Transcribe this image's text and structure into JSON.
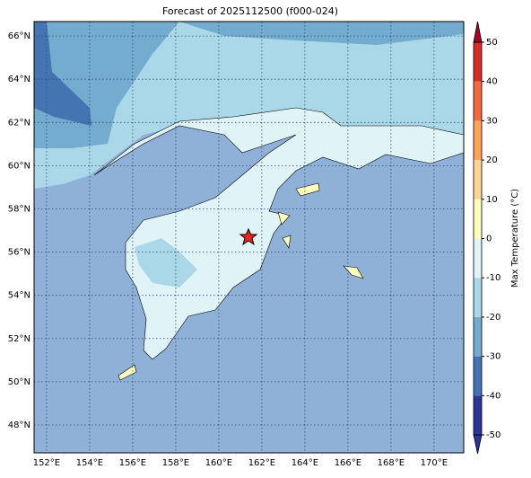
{
  "chart_data": {
    "type": "map",
    "title": "Forecast of 2025112500 (f000-024)",
    "xlim": [
      151.42,
      171.38
    ],
    "ylim": [
      46.71,
      66.67
    ],
    "xticks": [
      {
        "value": 152,
        "label": "152°E"
      },
      {
        "value": 154,
        "label": "154°E"
      },
      {
        "value": 156,
        "label": "156°E"
      },
      {
        "value": 158,
        "label": "158°E"
      },
      {
        "value": 160,
        "label": "160°E"
      },
      {
        "value": 162,
        "label": "162°E"
      },
      {
        "value": 164,
        "label": "164°E"
      },
      {
        "value": 166,
        "label": "166°E"
      },
      {
        "value": 168,
        "label": "168°E"
      },
      {
        "value": 170,
        "label": "170°E"
      }
    ],
    "yticks": [
      {
        "value": 48,
        "label": "48°N"
      },
      {
        "value": 50,
        "label": "50°N"
      },
      {
        "value": 52,
        "label": "52°N"
      },
      {
        "value": 54,
        "label": "54°N"
      },
      {
        "value": 56,
        "label": "56°N"
      },
      {
        "value": 58,
        "label": "58°N"
      },
      {
        "value": 60,
        "label": "60°N"
      },
      {
        "value": 62,
        "label": "62°N"
      },
      {
        "value": 64,
        "label": "64°N"
      },
      {
        "value": 66,
        "label": "66°N"
      }
    ],
    "grid": true,
    "colorbar": {
      "label": "Max Temperature (°C)",
      "lim": [
        -50,
        50
      ],
      "ticks": [
        -50,
        -40,
        -30,
        -20,
        -10,
        0,
        10,
        20,
        30,
        40,
        50
      ],
      "colors": [
        "#2b3593",
        "#4574b3",
        "#74acd0",
        "#abd8e8",
        "#e0f3f7",
        "#fefebe",
        "#fdd597",
        "#fca55d",
        "#f16a43",
        "#d62f26",
        "#a30025"
      ]
    }
  }
}
